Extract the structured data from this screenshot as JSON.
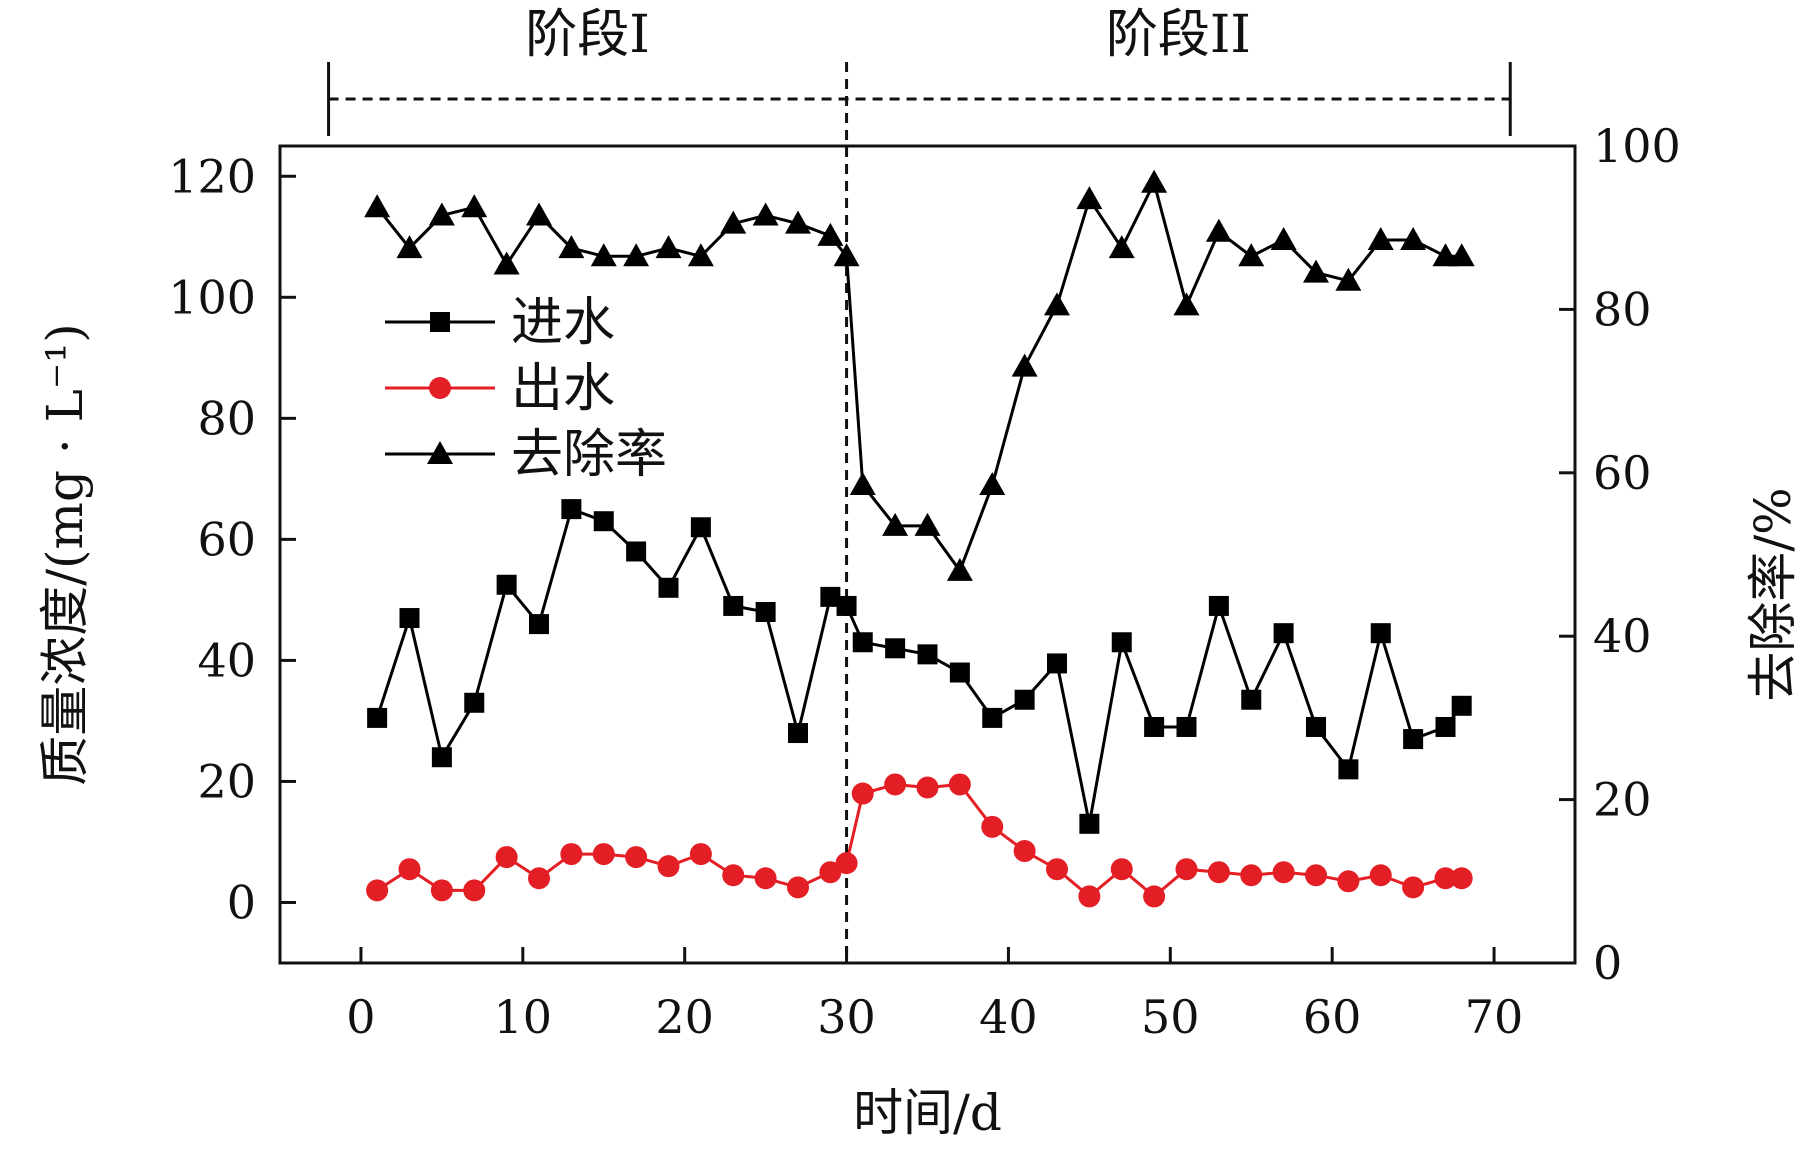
{
  "chart_data": {
    "type": "line",
    "title": "",
    "xlabel": "时间/d",
    "ylabel": "质量浓度/(mg · L⁻¹)",
    "y2label": "去除率/%",
    "xlim": [
      -5,
      75
    ],
    "ylim": [
      -10,
      125
    ],
    "y2lim": [
      0,
      100
    ],
    "xticks": [
      0,
      10,
      20,
      30,
      40,
      50,
      60,
      70
    ],
    "yticks": [
      0,
      20,
      40,
      60,
      80,
      100,
      120
    ],
    "y2ticks": [
      0,
      20,
      40,
      60,
      80,
      100
    ],
    "legend_position": "upper-left",
    "grid": false,
    "phase_divider_x": 30,
    "phases": [
      {
        "label": "阶段I",
        "start": -2,
        "end": 30
      },
      {
        "label": "阶段II",
        "start": 30,
        "end": 71
      }
    ],
    "series": [
      {
        "name": "进水",
        "axis": "left",
        "marker": "square",
        "color": "#000000",
        "x": [
          1,
          3,
          5,
          7,
          9,
          11,
          13,
          15,
          17,
          19,
          21,
          23,
          25,
          27,
          29,
          30,
          31,
          33,
          35,
          37,
          39,
          41,
          43,
          45,
          47,
          49,
          51,
          53,
          55,
          57,
          59,
          61,
          63,
          65,
          67,
          68
        ],
        "y": [
          30.5,
          47,
          24,
          33,
          52.5,
          46,
          65,
          63,
          58,
          52,
          62,
          49,
          48,
          28,
          50.5,
          49,
          43,
          42,
          41,
          38,
          30.5,
          33.5,
          39.5,
          13,
          43,
          29,
          29,
          49,
          33.5,
          44.5,
          29,
          22,
          44.5,
          27,
          29,
          32.5
        ]
      },
      {
        "name": "出水",
        "axis": "left",
        "marker": "circle",
        "color": "#e31e24",
        "x": [
          1,
          3,
          5,
          7,
          9,
          11,
          13,
          15,
          17,
          19,
          21,
          23,
          25,
          27,
          29,
          30,
          31,
          33,
          35,
          37,
          39,
          41,
          43,
          45,
          47,
          49,
          51,
          53,
          55,
          57,
          59,
          61,
          63,
          65,
          67,
          68
        ],
        "y": [
          2,
          5.5,
          2,
          2,
          7.5,
          4,
          8,
          8,
          7.5,
          6,
          8,
          4.5,
          4,
          2.5,
          5,
          6.5,
          18,
          19.5,
          19,
          19.5,
          12.5,
          8.5,
          5.5,
          1,
          5.5,
          1,
          5.5,
          5,
          4.5,
          5,
          4.5,
          3.5,
          4.5,
          2.5,
          4,
          4
        ]
      },
      {
        "name": "去除率",
        "axis": "right",
        "marker": "triangle",
        "color": "#000000",
        "x": [
          1,
          3,
          5,
          7,
          9,
          11,
          13,
          15,
          17,
          19,
          21,
          23,
          25,
          27,
          29,
          30,
          31,
          33,
          35,
          37,
          39,
          41,
          43,
          45,
          47,
          49,
          51,
          53,
          55,
          57,
          59,
          61,
          63,
          65,
          67,
          68
        ],
        "y": [
          92.5,
          87.5,
          91.5,
          92.5,
          85.5,
          91.5,
          87.5,
          86.5,
          86.5,
          87.5,
          86.5,
          90.5,
          91.5,
          90.5,
          89,
          86.5,
          58.5,
          53.5,
          53.5,
          48,
          58.5,
          73,
          80.5,
          93.5,
          87.5,
          95.5,
          80.5,
          89.5,
          86.5,
          88.5,
          84.5,
          83.5,
          88.5,
          88.5,
          86.5,
          86.5
        ]
      }
    ]
  }
}
